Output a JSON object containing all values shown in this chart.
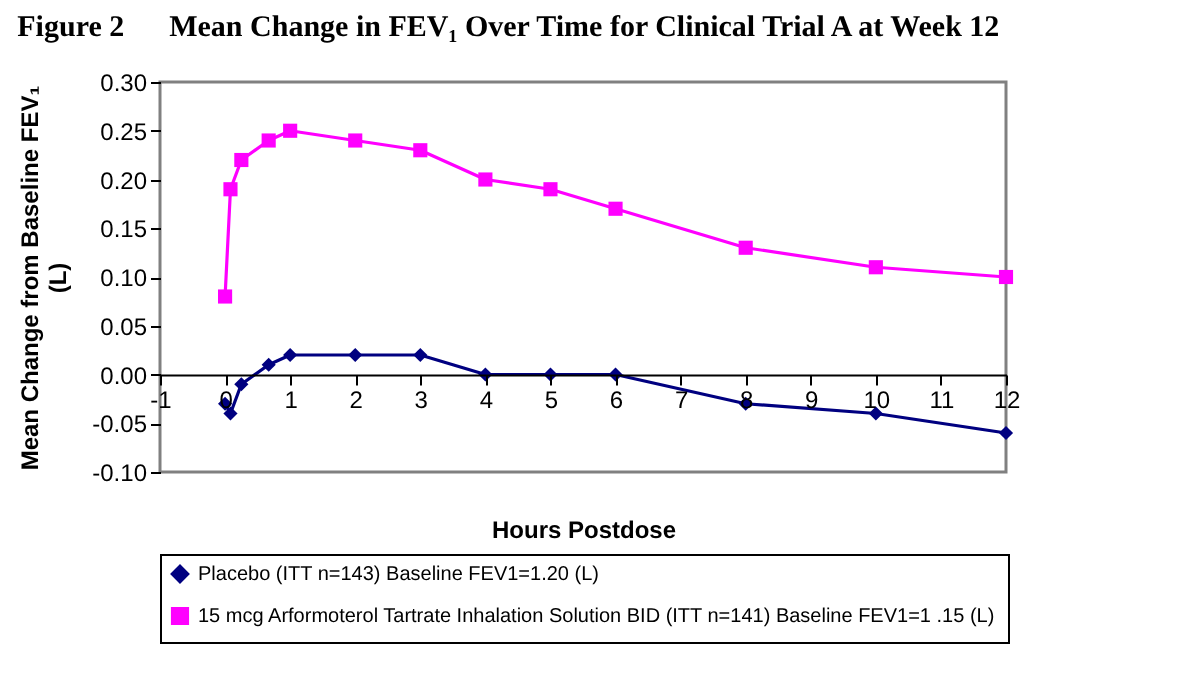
{
  "chart_data": {
    "type": "line",
    "title": "Figure 2      Mean Change in FEV₁ Over Time for Clinical Trial A at Week 12",
    "xlabel": "Hours Postdose",
    "ylabel": "Mean Change from Baseline FEV₁ (L)",
    "series": [
      {
        "name": "Placebo (ITT n=143) Baseline FEV1=1.20 (L)",
        "color": "#000080",
        "marker": "diamond",
        "x": [
          0,
          0.083,
          0.25,
          0.67,
          1,
          2,
          3,
          4,
          5,
          6,
          8,
          10,
          12
        ],
        "values": [
          -0.03,
          -0.04,
          -0.01,
          0.01,
          0.02,
          0.02,
          0.02,
          0,
          0,
          0,
          -0.03,
          -0.04,
          -0.06
        ]
      },
      {
        "name": "15 mcg Arformoterol Tartrate Inhalation Solution BID (ITT n=141) Baseline FEV1=1 .15 (L)",
        "color": "#ff00ff",
        "marker": "square",
        "x": [
          0,
          0.083,
          0.25,
          0.67,
          1,
          2,
          3,
          4,
          5,
          6,
          8,
          10,
          12
        ],
        "values": [
          0.08,
          0.19,
          0.22,
          0.24,
          0.25,
          0.24,
          0.23,
          0.2,
          0.19,
          0.17,
          0.13,
          0.11,
          0.1
        ]
      }
    ],
    "xlim": [
      -1,
      12
    ],
    "xticks": [
      -1,
      0,
      1,
      2,
      3,
      4,
      5,
      6,
      7,
      8,
      9,
      10,
      11,
      12
    ],
    "ylim": [
      -0.1,
      0.3
    ],
    "yticks": [
      {
        "value": -0.1,
        "label": "-0.10"
      },
      {
        "value": -0.05,
        "label": "-0.05"
      },
      {
        "value": 0,
        "label": "0.00"
      },
      {
        "value": 0.05,
        "label": "0.05"
      },
      {
        "value": 0.1,
        "label": "0.10"
      },
      {
        "value": 0.15,
        "label": "0.15"
      },
      {
        "value": 0.2,
        "label": "0.20"
      },
      {
        "value": 0.25,
        "label": "0.25"
      },
      {
        "value": 0.3,
        "label": "0.30"
      }
    ],
    "grid": false,
    "legend": "bottom",
    "line_style": "solid"
  }
}
